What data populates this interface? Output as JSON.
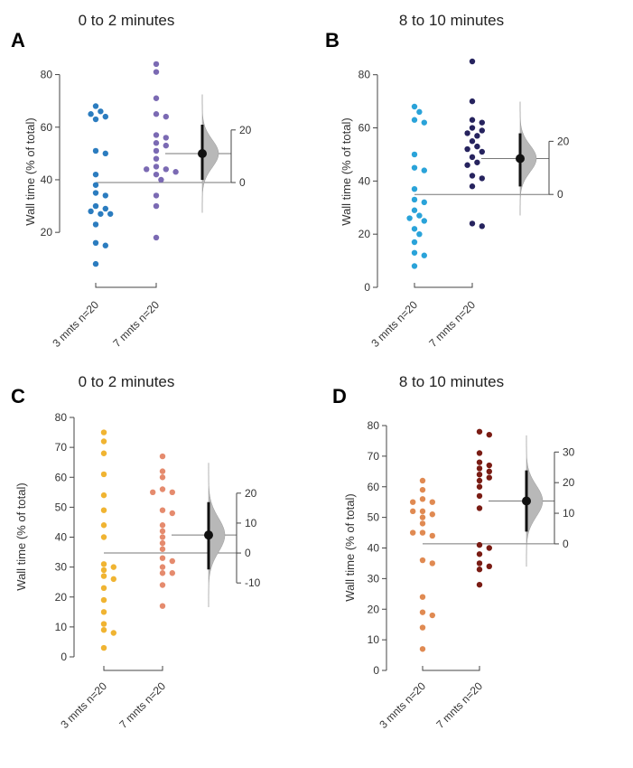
{
  "chart_data": [
    {
      "type": "scatter",
      "panel": "A",
      "title": "0 to 2 minutes",
      "ylabel": "Wall time (% of total)",
      "ylim": [
        7,
        85
      ],
      "yticks": [
        20,
        40,
        60,
        80
      ],
      "groups": [
        {
          "label": "3 mnts n=20",
          "color": "#2b7cbf",
          "values": [
            68,
            66,
            65,
            64,
            63,
            51,
            50,
            42,
            38,
            35,
            34,
            30,
            29,
            28,
            27,
            27,
            23,
            16,
            15,
            8
          ]
        },
        {
          "label": "7 mnts n=20",
          "color": "#7b6ab3",
          "values": [
            84,
            81,
            71,
            65,
            64,
            57,
            56,
            54,
            53,
            51,
            48,
            45,
            44,
            44,
            43,
            42,
            40,
            34,
            30,
            18
          ]
        }
      ],
      "delta": {
        "mean": 11,
        "ci_low": 1,
        "ci_high": 22
      },
      "delta_ticks": [
        0,
        20
      ]
    },
    {
      "type": "scatter",
      "panel": "B",
      "title": "8 to 10 minutes",
      "ylabel": "Wall time (% of total)",
      "ylim": [
        0,
        85
      ],
      "yticks": [
        0,
        20,
        40,
        60,
        80
      ],
      "groups": [
        {
          "label": "3 mnts n=20",
          "color": "#2aa3d9",
          "values": [
            68,
            66,
            63,
            62,
            50,
            45,
            44,
            37,
            33,
            32,
            29,
            27,
            26,
            25,
            22,
            20,
            17,
            13,
            12,
            8
          ]
        },
        {
          "label": "7 mnts n=20",
          "color": "#26235e",
          "values": [
            85,
            70,
            63,
            62,
            60,
            59,
            58,
            57,
            55,
            53,
            52,
            51,
            49,
            47,
            46,
            42,
            41,
            38,
            24,
            23
          ]
        }
      ],
      "delta": {
        "mean": 13.5,
        "ci_low": 3,
        "ci_high": 23
      },
      "delta_ticks": [
        0,
        20
      ]
    },
    {
      "type": "scatter",
      "panel": "C",
      "title": "0 to 2 minutes",
      "ylabel": "Wall time (% of total)",
      "ylim": [
        0,
        80
      ],
      "yticks": [
        0,
        10,
        20,
        30,
        40,
        50,
        60,
        70,
        80
      ],
      "groups": [
        {
          "label": "3 mnts n=20",
          "color": "#f0b432",
          "values": [
            75,
            72,
            68,
            61,
            54,
            49,
            44,
            40,
            31,
            30,
            29,
            27,
            26,
            23,
            19,
            15,
            11,
            9,
            8,
            3
          ]
        },
        {
          "label": "7 mnts n=20",
          "color": "#e58b6e",
          "values": [
            67,
            62,
            60,
            56,
            55,
            55,
            49,
            48,
            44,
            42,
            40,
            38,
            36,
            33,
            32,
            30,
            28,
            28,
            24,
            17
          ]
        }
      ],
      "delta": {
        "mean": 6,
        "ci_low": -5.5,
        "ci_high": 17
      },
      "delta_ticks": [
        -10,
        0,
        10,
        20
      ]
    },
    {
      "type": "scatter",
      "panel": "D",
      "title": "8 to 10 minutes",
      "ylabel": "Wall time (% of total)",
      "ylim": [
        0,
        80
      ],
      "yticks": [
        0,
        10,
        20,
        30,
        40,
        50,
        60,
        70,
        80
      ],
      "groups": [
        {
          "label": "3 mnts n=20",
          "color": "#e08a52",
          "values": [
            62,
            59,
            56,
            55,
            55,
            52,
            51,
            50,
            48,
            45,
            44,
            36,
            35,
            24,
            19,
            18,
            14,
            7,
            45,
            52
          ]
        },
        {
          "label": "7 mnts n=20",
          "color": "#7a1c14",
          "values": [
            78,
            77,
            71,
            68,
            66,
            65,
            64,
            63,
            62,
            60,
            57,
            53,
            41,
            40,
            38,
            35,
            34,
            33,
            28,
            67
          ]
        }
      ],
      "delta": {
        "mean": 14,
        "ci_low": 4,
        "ci_high": 24
      },
      "delta_ticks": [
        0,
        10,
        20,
        30
      ]
    }
  ]
}
